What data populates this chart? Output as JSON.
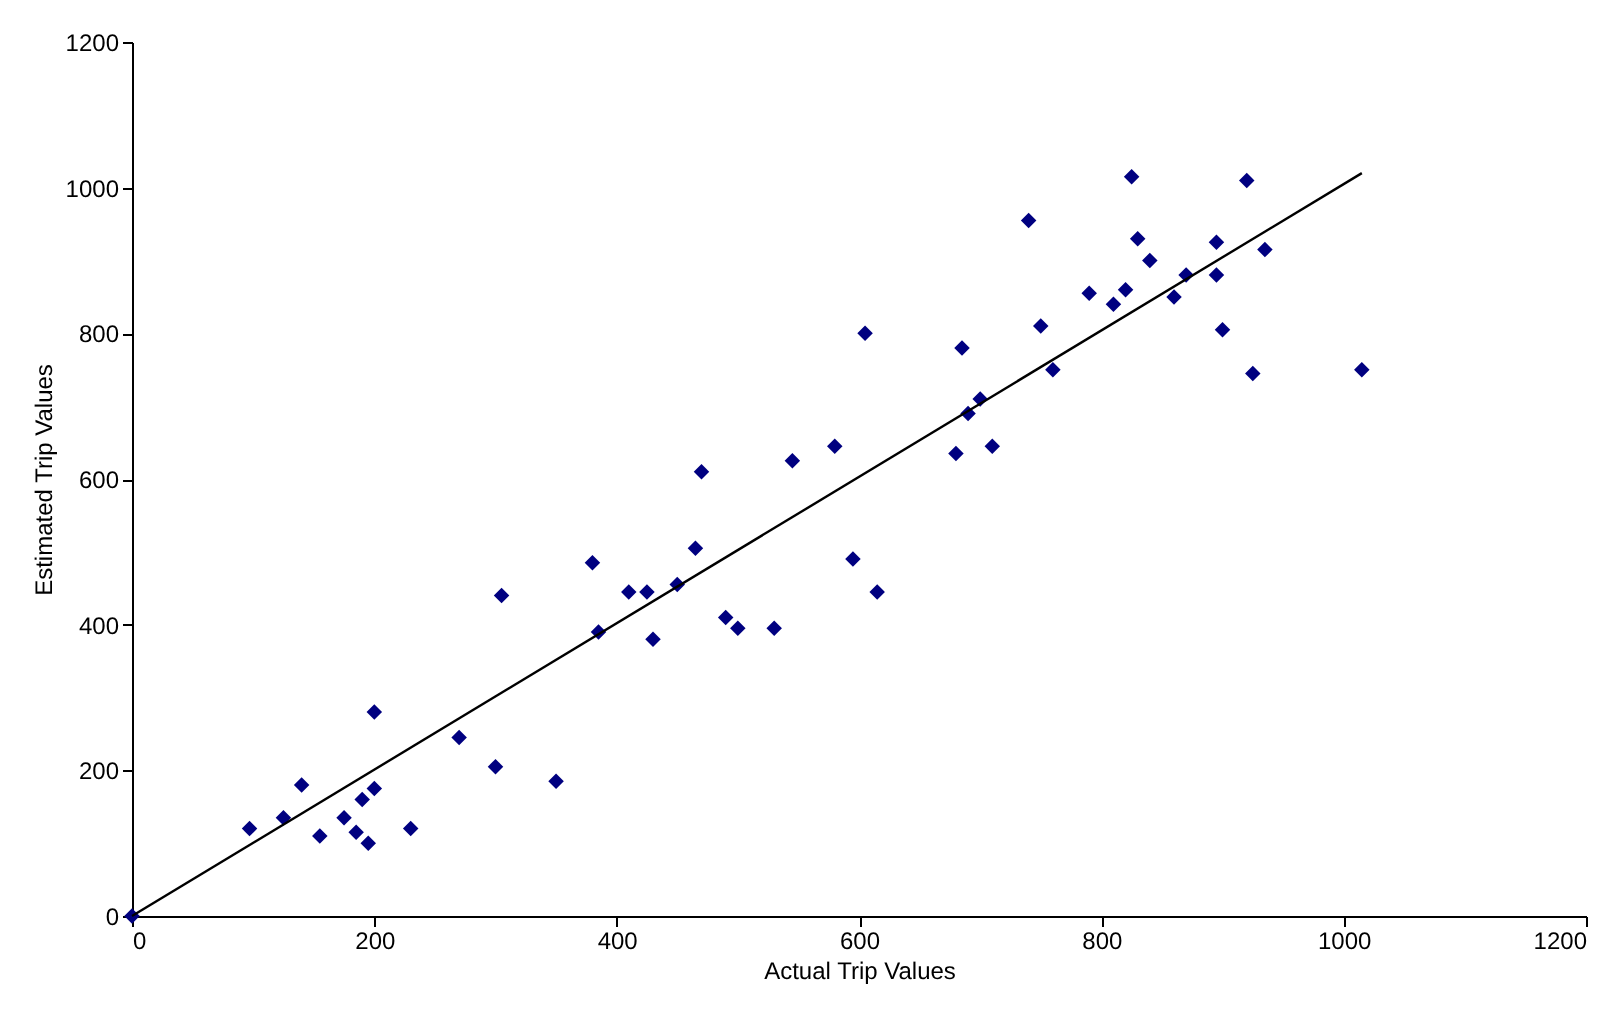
{
  "chart_data": {
    "type": "scatter",
    "xlabel": "Actual Trip Values",
    "ylabel": "Estimated Trip Values",
    "xlim": [
      0,
      1200
    ],
    "xticks": [
      0,
      200,
      400,
      600,
      800,
      1000,
      1200
    ],
    "ylim": [
      0,
      1200
    ],
    "yticks": [
      0,
      200,
      400,
      600,
      800,
      1000,
      1200
    ],
    "grid": false,
    "series": [
      {
        "color": "#000080",
        "marker": "diamond",
        "x": [
          0,
          97,
          125,
          140,
          155,
          175,
          185,
          195,
          190,
          200,
          200,
          230,
          270,
          300,
          305,
          350,
          380,
          385,
          410,
          425,
          430,
          450,
          465,
          470,
          490,
          500,
          530,
          545,
          580,
          595,
          605,
          615,
          680,
          685,
          690,
          700,
          710,
          740,
          750,
          760,
          790,
          810,
          820,
          825,
          830,
          840,
          860,
          870,
          895,
          895,
          900,
          920,
          925,
          935,
          1015
        ],
        "values": [
          0,
          120,
          135,
          180,
          110,
          135,
          115,
          100,
          160,
          175,
          280,
          120,
          245,
          205,
          440,
          185,
          485,
          390,
          445,
          445,
          380,
          455,
          505,
          610,
          410,
          395,
          395,
          625,
          645,
          490,
          800,
          445,
          635,
          780,
          690,
          710,
          645,
          955,
          810,
          750,
          855,
          840,
          860,
          1015,
          930,
          900,
          850,
          880,
          880,
          925,
          805,
          1010,
          745,
          915,
          750
        ]
      },
      {
        "type": "line",
        "color": "#000000",
        "marker": "none",
        "line_style": "solid",
        "x": [
          0,
          1015
        ],
        "values": [
          0,
          1020
        ]
      }
    ]
  }
}
